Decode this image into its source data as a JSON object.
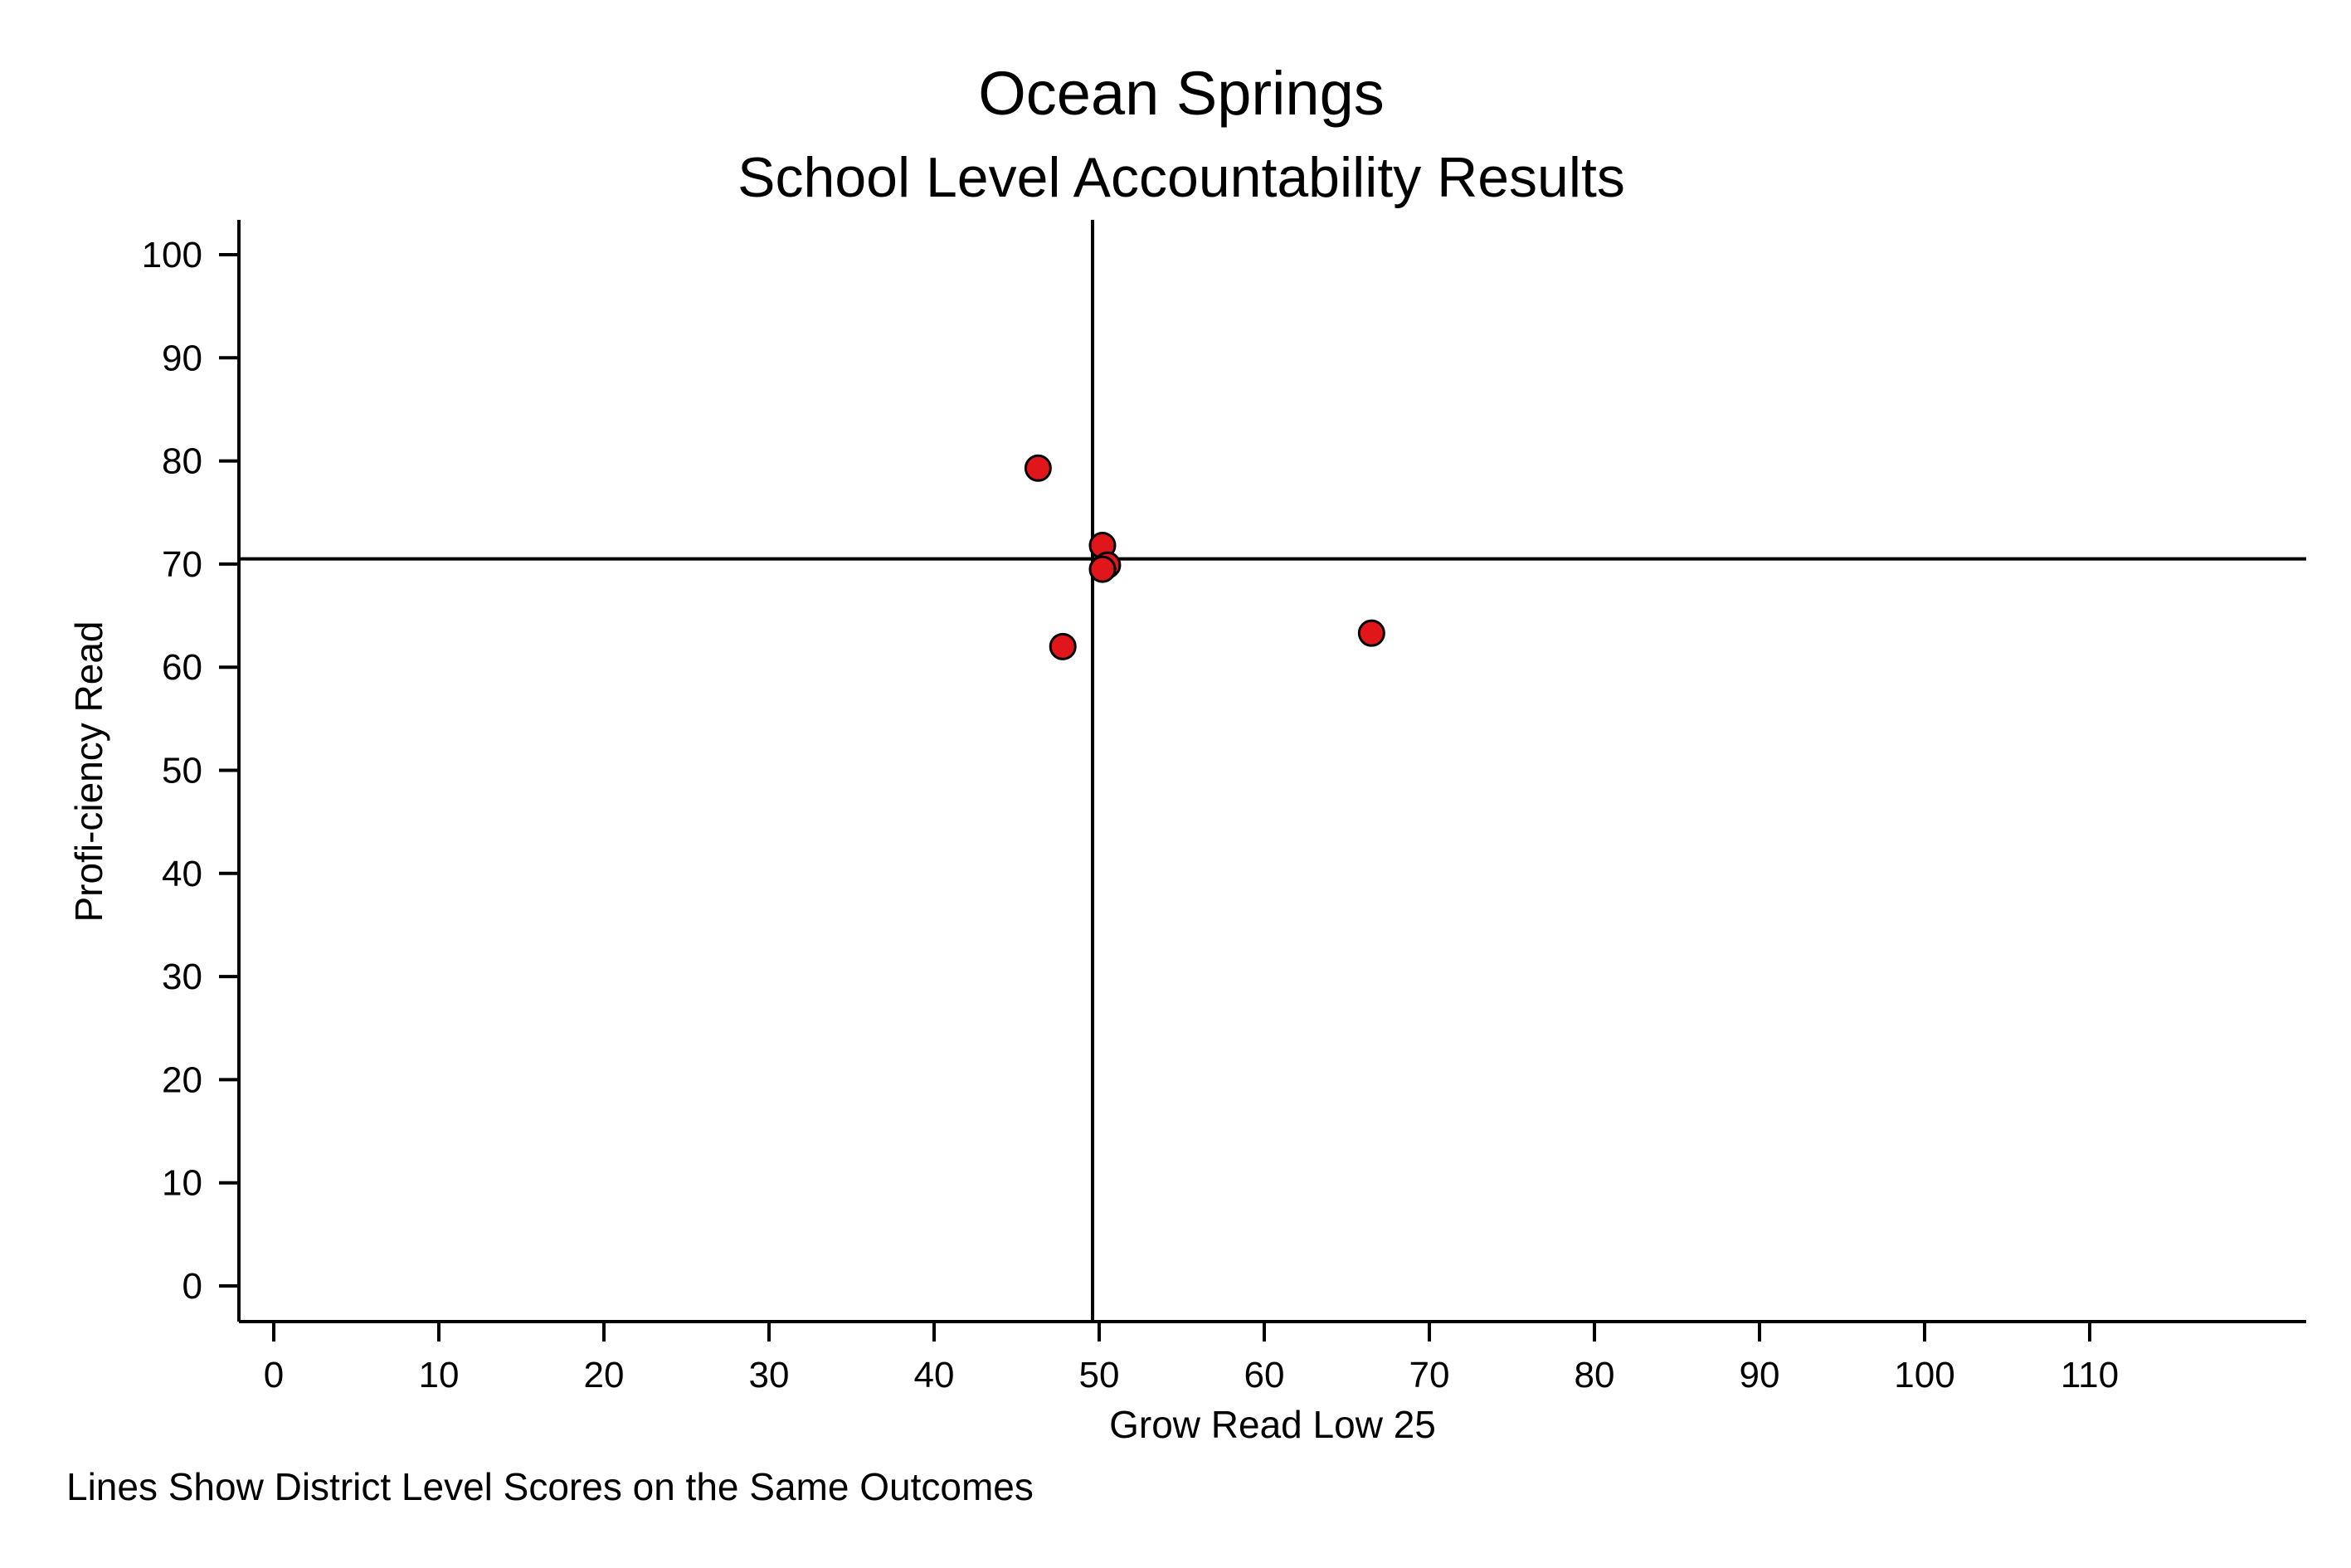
{
  "chart_data": {
    "type": "scatter",
    "title": "Ocean Springs",
    "subtitle": "School Level Accountability Results",
    "xlabel": "Grow Read Low 25",
    "ylabel": "Profi-ciency Read",
    "note": "Lines Show District Level Scores on the Same Outcomes",
    "xlim": [
      0,
      110
    ],
    "ylim": [
      0,
      100
    ],
    "x_ticks": [
      "0",
      "10",
      "20",
      "30",
      "40",
      "50",
      "60",
      "70",
      "80",
      "90",
      "100",
      "110"
    ],
    "y_ticks": [
      "0",
      "10",
      "20",
      "30",
      "40",
      "50",
      "60",
      "70",
      "80",
      "90",
      "100"
    ],
    "reference_lines": {
      "x": 49.6,
      "y": 70.5
    },
    "grid": false,
    "marker_color": "#e0161b",
    "points": [
      {
        "x": 46.3,
        "y": 79.3
      },
      {
        "x": 50.2,
        "y": 71.8
      },
      {
        "x": 50.5,
        "y": 69.9
      },
      {
        "x": 50.2,
        "y": 69.5
      },
      {
        "x": 47.8,
        "y": 62.0
      },
      {
        "x": 66.5,
        "y": 63.3
      }
    ]
  }
}
